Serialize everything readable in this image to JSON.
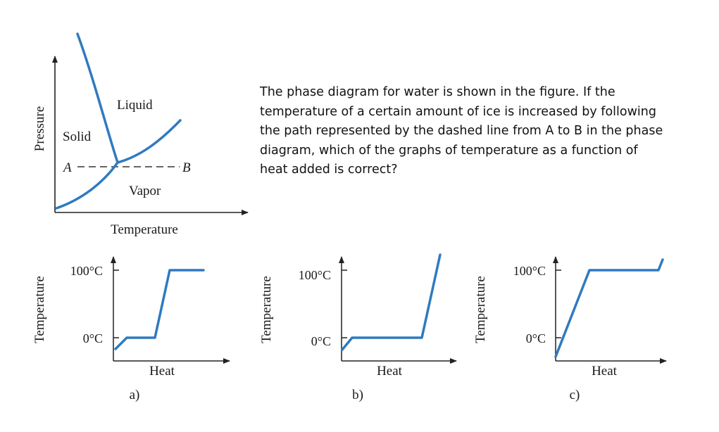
{
  "colors": {
    "curve": "#2f7ac0",
    "axis": "#222222",
    "text": "#1a1a1a"
  },
  "phase_diagram": {
    "axis_x": "Temperature",
    "axis_y": "Pressure",
    "region_solid": "Solid",
    "region_liquid": "Liquid",
    "region_vapor": "Vapor",
    "point_a": "A",
    "point_b": "B"
  },
  "question": {
    "lines": [
      "The phase diagram for water is shown in the figure. If the",
      "temperature of a certain amount of ice is increased by following",
      "the path represented by the dashed line from A to B in the phase",
      "diagram, which of the graphs of temperature as a function of",
      "heat added is correct?"
    ]
  },
  "graphs": [
    {
      "label": "a)",
      "xlabel": "Heat",
      "ylabel": "Temperature",
      "tick_high": "100°C",
      "tick_low": "0°C"
    },
    {
      "label": "b)",
      "xlabel": "Heat",
      "ylabel": "Temperature",
      "tick_high": "100°C",
      "tick_low": "0°C"
    },
    {
      "label": "c)",
      "xlabel": "Heat",
      "ylabel": "Temperature",
      "tick_high": "100°C",
      "tick_low": "0°C"
    }
  ]
}
